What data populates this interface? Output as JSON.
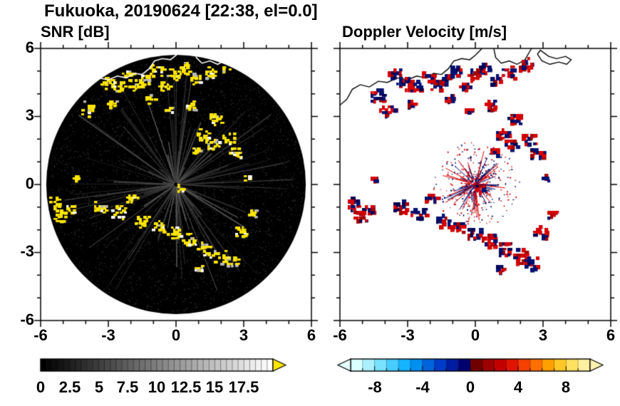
{
  "title": "Fukuoka, 20190624 [22:38, el=0.0]",
  "panels": {
    "snr": {
      "title": "SNR [dB]"
    },
    "doppler": {
      "title": "Doppler Velocity [m/s]"
    }
  },
  "axis": {
    "yticks": [
      "6",
      "3",
      "0",
      "-3",
      "-6"
    ],
    "xticks": [
      "-6",
      "-3",
      "0",
      "3",
      "6"
    ]
  },
  "colorbar_snr": {
    "labels": [
      "0",
      "2.5",
      "5",
      "7.5",
      "10",
      "12.5",
      "15",
      "17.5"
    ]
  },
  "colorbar_doppler": {
    "labels": [
      "-8",
      "-4",
      "0",
      "4",
      "8"
    ]
  },
  "colors": {
    "echo": "#ffe600",
    "velocity_pos": "#d40000",
    "velocity_neg": "#001070",
    "snr_overflow": "#ffe600",
    "doppler_underflow": "#e4ffff",
    "doppler_overflow": "#fff3b0",
    "disk": "#000000",
    "background": "#ffffff"
  },
  "chart_data": {
    "type": "heatmap",
    "panels": [
      {
        "title": "SNR [dB]",
        "colorbar": {
          "range": [
            0,
            20
          ],
          "scheme": "grayscale-black-to-white",
          "label_values": [
            0,
            2.5,
            5,
            7.5,
            10,
            12.5,
            15,
            17.5
          ],
          "overflow_arrow": "#ffe600"
        }
      },
      {
        "title": "Doppler Velocity [m/s]",
        "colorbar": {
          "range": [
            -10,
            10
          ],
          "label_values": [
            -8,
            -4,
            0,
            4,
            8
          ],
          "colors": [
            "#d9ffff",
            "#aaf0ff",
            "#78e2ff",
            "#46ccff",
            "#14b4ff",
            "#0090f0",
            "#0064dc",
            "#003cc8",
            "#001ca0",
            "#000070",
            "#700000",
            "#9c0000",
            "#c30000",
            "#e11400",
            "#f54000",
            "#ff7000",
            "#ffa000",
            "#ffc828",
            "#ffe060",
            "#fff0a0"
          ],
          "underflow_arrow": "#e4ffff",
          "overflow_arrow": "#fff3b0"
        }
      }
    ],
    "axis": {
      "xlim": [
        -6,
        6
      ],
      "ylim": [
        -6,
        6
      ],
      "major_tick_step": 3,
      "minor_tick_step": 1
    },
    "scan_radius": 5.75,
    "echoes": [
      [
        -4.35,
        3.95,
        0.35,
        -0.3
      ],
      [
        -3.95,
        3.3,
        0.3,
        0.4
      ],
      [
        -3.6,
        4.9,
        0.3,
        -0.5
      ],
      [
        -3.15,
        4.5,
        0.35,
        0.3
      ],
      [
        -2.6,
        4.4,
        0.3,
        -0.4
      ],
      [
        -2.15,
        4.85,
        0.28,
        0.5
      ],
      [
        -1.8,
        4.45,
        0.3,
        -0.2
      ],
      [
        -1.35,
        4.65,
        0.25,
        0.2
      ],
      [
        -0.9,
        5.05,
        0.3,
        -0.5
      ],
      [
        -0.55,
        4.35,
        0.25,
        0.3
      ],
      [
        -0.15,
        4.9,
        0.3,
        0.5
      ],
      [
        0.3,
        5.15,
        0.3,
        -0.4
      ],
      [
        0.85,
        4.7,
        0.28,
        0.4
      ],
      [
        1.45,
        5.0,
        0.3,
        -0.3
      ],
      [
        2.2,
        5.3,
        0.33,
        0.4
      ],
      [
        -2.9,
        3.6,
        0.2,
        0.6
      ],
      [
        -1.15,
        3.8,
        0.2,
        -0.6
      ],
      [
        -0.35,
        3.3,
        0.18,
        0.3
      ],
      [
        0.65,
        3.5,
        0.25,
        0.5
      ],
      [
        1.75,
        2.95,
        0.33,
        -0.4
      ],
      [
        1.15,
        2.2,
        0.3,
        0.5
      ],
      [
        1.6,
        1.85,
        0.3,
        -0.5
      ],
      [
        2.3,
        2.05,
        0.33,
        0.6
      ],
      [
        2.65,
        1.45,
        0.3,
        -0.6
      ],
      [
        0.85,
        1.5,
        0.2,
        0.4
      ],
      [
        -5.45,
        -0.75,
        0.3,
        -0.5
      ],
      [
        -5.2,
        -1.35,
        0.33,
        0.5
      ],
      [
        -4.75,
        -1.05,
        0.25,
        -0.3
      ],
      [
        -4.5,
        0.3,
        0.15,
        -0.4
      ],
      [
        -3.4,
        -0.95,
        0.3,
        0.4
      ],
      [
        -2.55,
        -1.2,
        0.33,
        -0.4
      ],
      [
        -2.0,
        -0.55,
        0.25,
        0.5
      ],
      [
        -1.55,
        -1.6,
        0.33,
        -0.5
      ],
      [
        -0.85,
        -1.85,
        0.3,
        0.5
      ],
      [
        -0.1,
        -2.1,
        0.33,
        -0.5
      ],
      [
        0.6,
        -2.4,
        0.33,
        0.5
      ],
      [
        1.25,
        -2.8,
        0.35,
        -0.5
      ],
      [
        1.9,
        -3.15,
        0.38,
        0.5
      ],
      [
        2.45,
        -3.4,
        0.3,
        -0.5
      ],
      [
        2.85,
        -2.05,
        0.3,
        0.5
      ],
      [
        1.0,
        -3.65,
        0.2,
        -0.4
      ],
      [
        0.15,
        -0.12,
        0.15,
        0.7
      ],
      [
        3.1,
        0.3,
        0.15,
        -0.6
      ],
      [
        3.35,
        -1.25,
        0.18,
        0.5
      ]
    ],
    "coastline": [
      [
        [
          -6.0,
          3.5
        ],
        [
          -5.7,
          3.75
        ],
        [
          -5.45,
          4.2
        ],
        [
          -5.1,
          4.4
        ],
        [
          -4.7,
          4.3
        ],
        [
          -4.3,
          4.55
        ],
        [
          -3.9,
          4.5
        ],
        [
          -3.45,
          4.7
        ],
        [
          -3.0,
          4.62
        ],
        [
          -2.6,
          4.78
        ],
        [
          -2.2,
          4.7
        ],
        [
          -1.85,
          4.9
        ],
        [
          -1.5,
          4.85
        ],
        [
          -1.2,
          5.1
        ],
        [
          -0.95,
          5.45
        ],
        [
          -0.6,
          5.55
        ],
        [
          -0.25,
          5.5
        ],
        [
          0.0,
          5.7
        ],
        [
          0.25,
          5.95
        ],
        [
          0.35,
          6.1
        ]
      ],
      [
        [
          0.8,
          6.1
        ],
        [
          0.9,
          5.6
        ],
        [
          1.15,
          5.35
        ],
        [
          1.5,
          5.45
        ],
        [
          1.85,
          5.3
        ],
        [
          2.2,
          5.5
        ],
        [
          2.4,
          5.85
        ],
        [
          2.55,
          6.1
        ]
      ],
      [
        [
          2.75,
          5.75
        ],
        [
          2.95,
          5.45
        ],
        [
          3.3,
          5.3
        ],
        [
          3.7,
          5.4
        ],
        [
          4.05,
          5.3
        ],
        [
          4.25,
          5.5
        ],
        [
          4.0,
          5.65
        ],
        [
          3.6,
          5.55
        ],
        [
          3.25,
          5.65
        ],
        [
          3.05,
          5.8
        ],
        [
          2.88,
          5.92
        ],
        [
          2.75,
          5.75
        ]
      ]
    ]
  }
}
